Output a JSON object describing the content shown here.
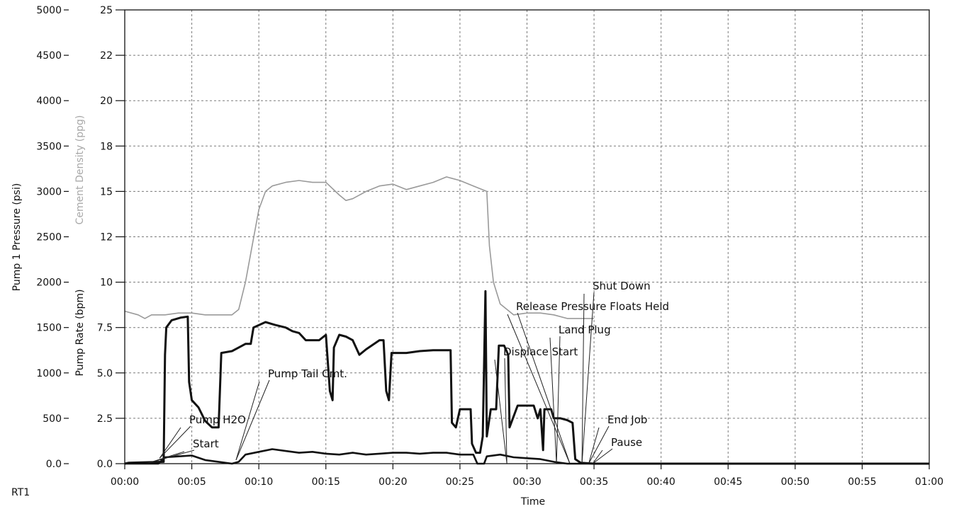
{
  "chart_data": {
    "type": "line",
    "xlabel": "Time",
    "corner_label": "RT1",
    "x_ticks": [
      "00:00",
      "00:05",
      "00:10",
      "00:15",
      "00:20",
      "00:25",
      "00:30",
      "00:35",
      "00:40",
      "00:45",
      "00:50",
      "00:55",
      "01:00"
    ],
    "xlim_min": [
      0,
      60
    ],
    "y_left": {
      "label": "Pump 1 Pressure (psi)",
      "range": [
        0,
        5000
      ],
      "ticks": [
        "0.0",
        "500",
        "1000",
        "1500",
        "2000",
        "2500",
        "3000",
        "3500",
        "4000",
        "4500",
        "5000"
      ]
    },
    "y_right": {
      "label": "Pump Rate (bpm)",
      "label2": "Cement Density (ppg)",
      "range": [
        0,
        25
      ],
      "ticks": [
        "0.0",
        "2.5",
        "5.0",
        "7.5",
        "10",
        "12",
        "15",
        "18",
        "20",
        "22",
        "25"
      ]
    },
    "grid": true,
    "series": [
      {
        "name": "Pump 1 Pressure (psi)",
        "axis": "left",
        "color": "#111111",
        "width": 3,
        "points": [
          [
            0,
            0
          ],
          [
            0.3,
            10
          ],
          [
            2.9,
            20
          ],
          [
            3,
            1200
          ],
          [
            3.1,
            1500
          ],
          [
            3.5,
            1580
          ],
          [
            4.2,
            1610
          ],
          [
            4.7,
            1620
          ],
          [
            4.8,
            900
          ],
          [
            5,
            700
          ],
          [
            5.5,
            620
          ],
          [
            6,
            470
          ],
          [
            6.5,
            400
          ],
          [
            7,
            400
          ],
          [
            7.2,
            1220
          ],
          [
            8,
            1240
          ],
          [
            8.5,
            1280
          ],
          [
            9,
            1320
          ],
          [
            9.4,
            1320
          ],
          [
            9.6,
            1500
          ],
          [
            10.5,
            1560
          ],
          [
            11.2,
            1530
          ],
          [
            12,
            1500
          ],
          [
            12.5,
            1460
          ],
          [
            13,
            1440
          ],
          [
            13.5,
            1360
          ],
          [
            14.5,
            1360
          ],
          [
            15,
            1420
          ],
          [
            15.3,
            800
          ],
          [
            15.5,
            700
          ],
          [
            15.6,
            1280
          ],
          [
            16,
            1420
          ],
          [
            16.5,
            1400
          ],
          [
            17,
            1360
          ],
          [
            17.5,
            1200
          ],
          [
            18,
            1260
          ],
          [
            19,
            1360
          ],
          [
            19.3,
            1360
          ],
          [
            19.5,
            800
          ],
          [
            19.7,
            700
          ],
          [
            19.9,
            1220
          ],
          [
            21,
            1220
          ],
          [
            22,
            1240
          ],
          [
            23,
            1250
          ],
          [
            24.3,
            1250
          ],
          [
            24.4,
            450
          ],
          [
            24.7,
            400
          ],
          [
            25,
            600
          ],
          [
            25.8,
            600
          ],
          [
            25.9,
            220
          ],
          [
            26.2,
            120
          ],
          [
            26.5,
            120
          ],
          [
            26.7,
            300
          ],
          [
            26.9,
            1900
          ],
          [
            27.0,
            300
          ],
          [
            27.3,
            600
          ],
          [
            27.7,
            600
          ],
          [
            27.9,
            1300
          ],
          [
            28.3,
            1300
          ],
          [
            28.6,
            1200
          ],
          [
            28.7,
            400
          ],
          [
            29.3,
            640
          ],
          [
            30.5,
            640
          ],
          [
            30.8,
            500
          ],
          [
            31,
            600
          ],
          [
            31.2,
            150
          ],
          [
            31.3,
            600
          ],
          [
            31.8,
            600
          ],
          [
            32,
            500
          ],
          [
            32.5,
            500
          ],
          [
            33,
            480
          ],
          [
            33.4,
            450
          ],
          [
            33.6,
            50
          ],
          [
            34,
            10
          ],
          [
            35,
            0
          ],
          [
            60,
            0
          ]
        ]
      },
      {
        "name": "Pump Rate (bpm)",
        "axis": "right",
        "color": "#111111",
        "width": 2.6,
        "points": [
          [
            0,
            0
          ],
          [
            2.5,
            0
          ],
          [
            3,
            0.35
          ],
          [
            4,
            0.4
          ],
          [
            5,
            0.45
          ],
          [
            6,
            0.2
          ],
          [
            7,
            0.1
          ],
          [
            8,
            0
          ],
          [
            8.5,
            0.1
          ],
          [
            9,
            0.5
          ],
          [
            10,
            0.65
          ],
          [
            11,
            0.8
          ],
          [
            12,
            0.7
          ],
          [
            13,
            0.6
          ],
          [
            14,
            0.65
          ],
          [
            15,
            0.55
          ],
          [
            16,
            0.5
          ],
          [
            17,
            0.6
          ],
          [
            18,
            0.5
          ],
          [
            19,
            0.55
          ],
          [
            20,
            0.6
          ],
          [
            21,
            0.6
          ],
          [
            22,
            0.55
          ],
          [
            23,
            0.6
          ],
          [
            24,
            0.6
          ],
          [
            25,
            0.5
          ],
          [
            26,
            0.5
          ],
          [
            26.3,
            0
          ],
          [
            26.8,
            0
          ],
          [
            27,
            0.4
          ],
          [
            28,
            0.5
          ],
          [
            29,
            0.35
          ],
          [
            30,
            0.3
          ],
          [
            31,
            0.25
          ],
          [
            32,
            0.1
          ],
          [
            33,
            0
          ],
          [
            60,
            0
          ]
        ]
      },
      {
        "name": "Cement Density (ppg)",
        "axis": "right",
        "color": "#9a9a9a",
        "width": 1.6,
        "points": [
          [
            0,
            8.4
          ],
          [
            1,
            8.2
          ],
          [
            1.5,
            8.0
          ],
          [
            2,
            8.2
          ],
          [
            3,
            8.2
          ],
          [
            4,
            8.3
          ],
          [
            5,
            8.3
          ],
          [
            6,
            8.2
          ],
          [
            7,
            8.2
          ],
          [
            8,
            8.2
          ],
          [
            8.5,
            8.5
          ],
          [
            9,
            10
          ],
          [
            9.5,
            12
          ],
          [
            10,
            14
          ],
          [
            10.5,
            15.0
          ],
          [
            11,
            15.3
          ],
          [
            12,
            15.5
          ],
          [
            13,
            15.6
          ],
          [
            14,
            15.5
          ],
          [
            15,
            15.5
          ],
          [
            16,
            14.8
          ],
          [
            16.5,
            14.5
          ],
          [
            17,
            14.6
          ],
          [
            18,
            15.0
          ],
          [
            19,
            15.3
          ],
          [
            20,
            15.4
          ],
          [
            21,
            15.1
          ],
          [
            22,
            15.3
          ],
          [
            23,
            15.5
          ],
          [
            24,
            15.8
          ],
          [
            25,
            15.6
          ],
          [
            26,
            15.3
          ],
          [
            27,
            15.0
          ],
          [
            27.2,
            12
          ],
          [
            27.5,
            10
          ],
          [
            28,
            8.8
          ],
          [
            29,
            8.2
          ],
          [
            30,
            8.3
          ],
          [
            31,
            8.3
          ],
          [
            32,
            8.2
          ],
          [
            33,
            8.0
          ],
          [
            34,
            8.0
          ],
          [
            35,
            8.0
          ]
        ]
      }
    ],
    "annotations": [
      {
        "text": "Start",
        "tip": [
          1.6,
          0
        ]
      },
      {
        "text": "Pump H2O",
        "tip": [
          2.6,
          0.3
        ]
      },
      {
        "text": "Pump Tail Cmt.",
        "tip": [
          8.3,
          0.2
        ]
      },
      {
        "text": "Displace Start",
        "tip": [
          28.5,
          0
        ]
      },
      {
        "text": "Land Plug",
        "tip": [
          32.2,
          0
        ]
      },
      {
        "text": "Release Pressure Floats Held",
        "tip": [
          33.2,
          0
        ]
      },
      {
        "text": "Shut Down",
        "tip": [
          34.1,
          0
        ]
      },
      {
        "text": "End Job",
        "tip": [
          34.6,
          0
        ]
      },
      {
        "text": "Pause",
        "tip": [
          34.9,
          0
        ]
      }
    ]
  }
}
